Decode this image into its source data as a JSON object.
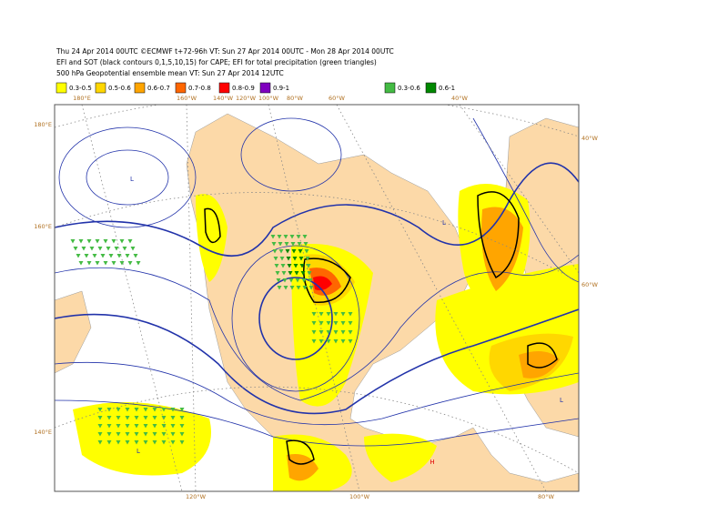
{
  "header": {
    "lines": [
      "Thu 24 Apr 2014 00UTC ©ECMWF t+72-96h VT: Sun 27 Apr 2014 00UTC - Mon 28 Apr 2014 00UTC",
      "EFI and SOT (black contours 0,1,5,10,15) for CAPE; EFI for total precipitation (green triangles)",
      "500 hPa Geopotential ensemble mean VT: Sun 27 Apr 2014 12UTC"
    ]
  },
  "legend": {
    "items": [
      {
        "label": "0.3-0.5",
        "color": "#ffff00"
      },
      {
        "label": "0.5-0.6",
        "color": "#ffd700"
      },
      {
        "label": "0.6-0.7",
        "color": "#ffa500"
      },
      {
        "label": "0.7-0.8",
        "color": "#ff6600"
      },
      {
        "label": "0.8-0.9",
        "color": "#ff0000"
      },
      {
        "label": "0.9-1",
        "color": "#7f00bf"
      },
      {
        "label": "0.3-0.6",
        "color": "#44bb44"
      },
      {
        "label": "0.6-1",
        "color": "#008800"
      }
    ]
  },
  "map": {
    "top_labels": [
      "180°E",
      "160°W",
      "140°W",
      "120°W",
      "100°W",
      "80°W",
      "60°W",
      "40°W"
    ],
    "left_labels": [
      "180°E",
      "160°E",
      "140°E"
    ],
    "right_labels": [
      "40°W",
      "60°W"
    ],
    "bottom_labels": [
      "120°W",
      "100°W",
      "80°W"
    ],
    "pressure_centers": [
      "L",
      "L",
      "L",
      "L",
      "H"
    ]
  }
}
